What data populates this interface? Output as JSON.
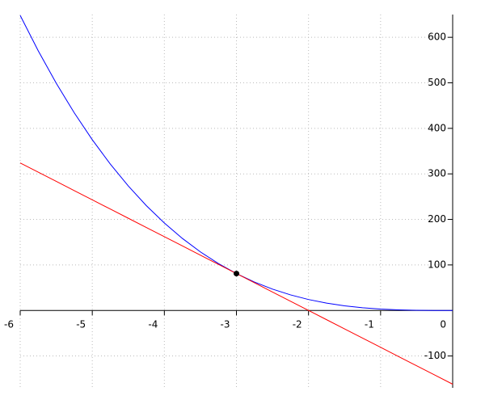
{
  "chart_data": {
    "type": "line",
    "x": [
      -6,
      -5.75,
      -5.5,
      -5.25,
      -5,
      -4.75,
      -4.5,
      -4.25,
      -4,
      -3.75,
      -3.5,
      -3.25,
      -3,
      -2.75,
      -2.5,
      -2.25,
      -2,
      -1.75,
      -1.5,
      -1.25,
      -1,
      -0.75,
      -0.5,
      -0.25,
      0
    ],
    "series": [
      {
        "color": "#0000ff",
        "values": [
          648,
          570.3,
          499.1,
          434.1,
          375,
          321.5,
          273.4,
          230.3,
          192,
          158.2,
          128.6,
          103.0,
          81,
          62.4,
          46.9,
          34.2,
          24,
          16.1,
          10.1,
          5.9,
          3,
          1.3,
          0.4,
          0.05,
          0
        ]
      },
      {
        "color": "#ff0000",
        "values": [
          324,
          303.75,
          283.5,
          263.25,
          243,
          222.75,
          202.5,
          182.25,
          162,
          141.75,
          121.5,
          101.25,
          81,
          60.75,
          40.5,
          20.25,
          0,
          -20.25,
          -40.5,
          -60.75,
          -81,
          -101.25,
          -121.5,
          -141.75,
          -162
        ]
      }
    ],
    "point": {
      "x": -3,
      "y": 81,
      "color": "#000000"
    },
    "xlim": [
      -6,
      0
    ],
    "ylim": [
      -170,
      650
    ],
    "xticks": [
      -6,
      -5,
      -4,
      -3,
      -2,
      -1,
      0
    ],
    "yticks": [
      -100,
      100,
      200,
      300,
      400,
      500,
      600
    ],
    "grid": true
  }
}
